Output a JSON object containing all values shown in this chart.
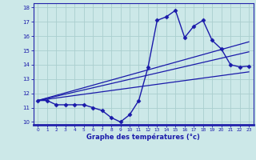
{
  "xlabel": "Graphe des températures (°c)",
  "bg_color": "#cce8e8",
  "grid_color": "#aacece",
  "line_color": "#1a1aaa",
  "axis_color": "#2222aa",
  "xlabel_color": "#1a1aaa",
  "tick_color": "#1a1aaa",
  "xlim": [
    -0.5,
    23.5
  ],
  "ylim": [
    9.8,
    18.3
  ],
  "xticks": [
    0,
    1,
    2,
    3,
    4,
    5,
    6,
    7,
    8,
    9,
    10,
    11,
    12,
    13,
    14,
    15,
    16,
    17,
    18,
    19,
    20,
    21,
    22,
    23
  ],
  "yticks": [
    10,
    11,
    12,
    13,
    14,
    15,
    16,
    17,
    18
  ],
  "series1_x": [
    0,
    1,
    2,
    3,
    4,
    5,
    6,
    7,
    8,
    9,
    10,
    11,
    12,
    13,
    14,
    15,
    16,
    17,
    18,
    19,
    20,
    21,
    22,
    23
  ],
  "series1_y": [
    11.5,
    11.5,
    11.2,
    11.2,
    11.2,
    11.2,
    11.0,
    10.8,
    10.3,
    10.0,
    10.5,
    11.5,
    13.8,
    17.1,
    17.35,
    17.8,
    15.9,
    16.7,
    17.1,
    15.7,
    15.1,
    14.0,
    13.85,
    13.9
  ],
  "series2_x": [
    0,
    23
  ],
  "series2_y": [
    11.5,
    15.6
  ],
  "series3_x": [
    0,
    23
  ],
  "series3_y": [
    11.5,
    14.9
  ],
  "series4_x": [
    0,
    23
  ],
  "series4_y": [
    11.5,
    13.5
  ]
}
